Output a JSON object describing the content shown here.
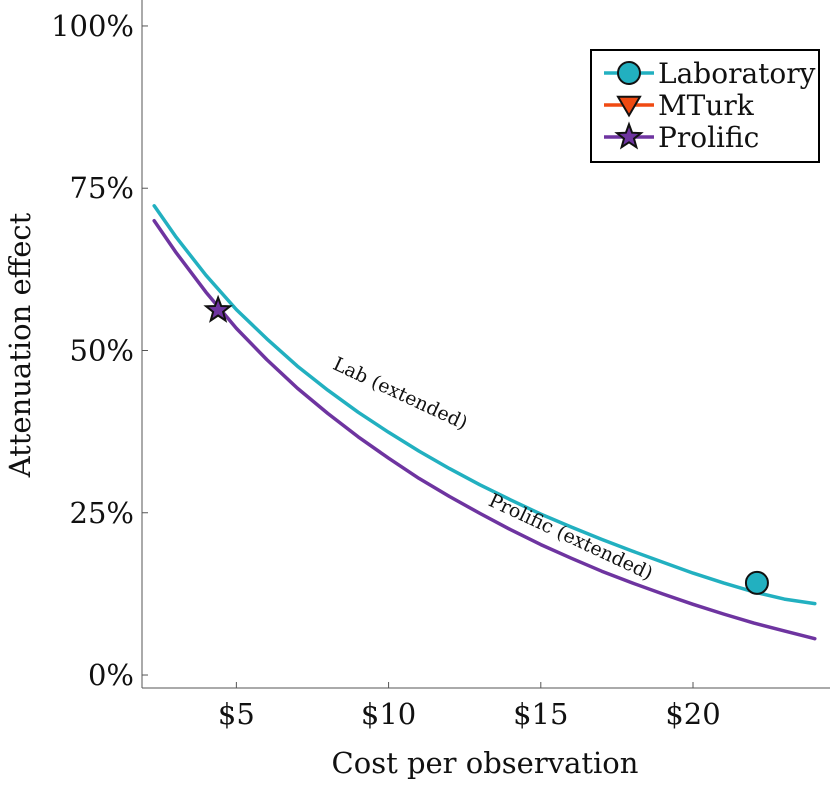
{
  "chart_data": {
    "type": "line",
    "xlabel": "Cost per observation",
    "ylabel": "Attenuation effect",
    "xlim": [
      1.9,
      24.5
    ],
    "ylim": [
      -2,
      104
    ],
    "xticks": [
      {
        "value": 5,
        "label": "$5"
      },
      {
        "value": 10,
        "label": "$10"
      },
      {
        "value": 15,
        "label": "$15"
      },
      {
        "value": 20,
        "label": "$20"
      }
    ],
    "yticks": [
      {
        "value": 0,
        "label": "0%"
      },
      {
        "value": 25,
        "label": "25%"
      },
      {
        "value": 50,
        "label": "50%"
      },
      {
        "value": 75,
        "label": "75%"
      },
      {
        "value": 100,
        "label": "100%"
      }
    ],
    "grid": false,
    "legend_position": "top-right",
    "series": [
      {
        "name": "Laboratory",
        "color": "#22b0c0",
        "marker": "circle",
        "x": [
          2.3,
          3,
          4,
          5,
          6,
          7,
          8,
          9,
          10,
          11,
          12,
          13,
          14,
          15,
          16,
          17,
          18,
          19,
          20,
          21,
          22,
          23,
          24
        ],
        "y": [
          72.3,
          67.6,
          61.6,
          56.3,
          51.8,
          47.6,
          43.9,
          40.5,
          37.4,
          34.5,
          31.8,
          29.3,
          27.0,
          24.8,
          22.8,
          20.9,
          19.1,
          17.4,
          15.7,
          14.2,
          12.8,
          11.7,
          11.0
        ],
        "points": [
          {
            "x": 22.1,
            "y": 14.2
          }
        ]
      },
      {
        "name": "MTurk",
        "color": "#f04a12",
        "marker": "triangle-down",
        "x": [],
        "y": [],
        "points": []
      },
      {
        "name": "Prolific",
        "color": "#6e34a0",
        "marker": "star",
        "x": [
          2.3,
          3,
          4,
          5,
          6,
          7,
          8,
          9,
          10,
          11,
          12,
          13,
          14,
          15,
          16,
          17,
          18,
          19,
          20,
          21,
          22,
          23,
          24
        ],
        "y": [
          70.0,
          65.2,
          59.0,
          53.4,
          48.6,
          44.2,
          40.3,
          36.7,
          33.4,
          30.3,
          27.5,
          24.9,
          22.4,
          20.1,
          18.0,
          16.0,
          14.2,
          12.5,
          10.9,
          9.4,
          8.0,
          6.8,
          5.6
        ],
        "points": [
          {
            "x": 4.4,
            "y": 56.2
          }
        ]
      }
    ],
    "annotations": [
      {
        "text": "Lab (extended)",
        "x": 10.3,
        "y": 42.5,
        "angle": 25
      },
      {
        "text": "Prolific (extended)",
        "x": 15.9,
        "y": 20.4,
        "angle": 25
      }
    ]
  }
}
